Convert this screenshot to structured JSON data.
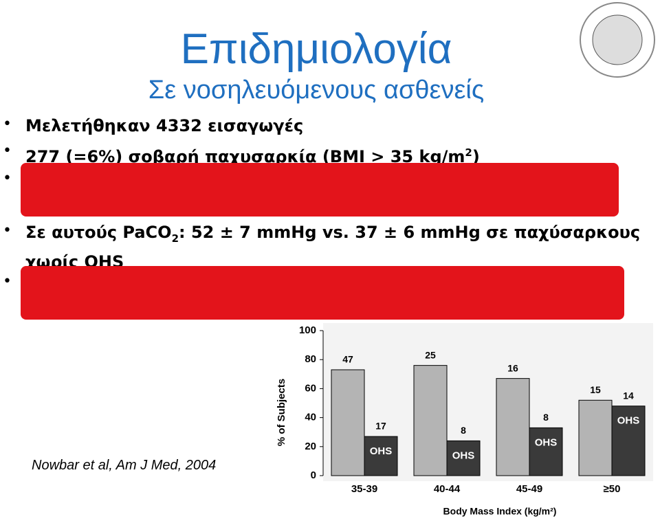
{
  "title": "Επιδημιολογία",
  "subtitle": "Σε νοσηλευόμενους ασθενείς",
  "bullets": [
    {
      "text": "Μελετήθηκαν 4332 εισαγωγές"
    },
    {
      "text": "277 (=6%) σοβαρή παχυσαρκία (BMI > 35 kg/m",
      "sup": "2",
      "tail": ")"
    },
    {
      "text": "Σε αυτούς PaCO",
      "sub": "2",
      "tail": ": 52 ± 7 mmHg vs. 37 ± 6 mmHg  σε παχύσαρκους χωρίς OHS"
    }
  ],
  "citation": "Nowbar et al, Am J Med, 2004",
  "chart_data": {
    "type": "bar",
    "x_label": "Body Mass Index (kg/m²)",
    "y_label": "% of Subjects",
    "categories": [
      "35-39",
      "40-44",
      "45-49",
      "≥50"
    ],
    "series": [
      {
        "color": "#b4b4b4",
        "values": [
          73,
          76,
          67,
          52
        ],
        "counts": [
          "47",
          "25",
          "16",
          "15"
        ]
      },
      {
        "name": "OHS",
        "color": "#3a3a3a",
        "values": [
          27,
          24,
          33,
          48
        ],
        "counts": [
          "17",
          "8",
          "8",
          "14"
        ]
      }
    ],
    "ylim": [
      0,
      100
    ],
    "yticks": [
      0,
      20,
      40,
      60,
      80,
      100
    ]
  }
}
